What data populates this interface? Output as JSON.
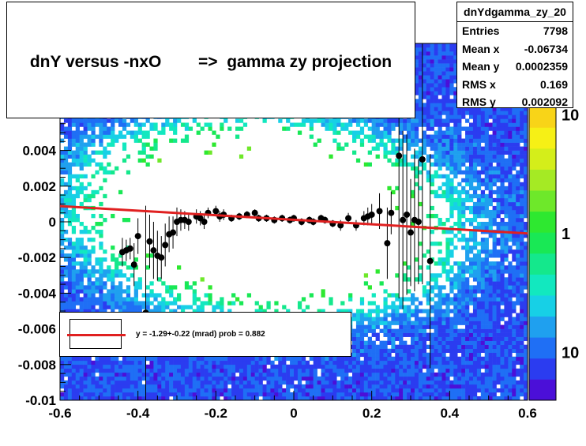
{
  "title": "dnY versus -nxO        =>  gamma zy projection",
  "stats": {
    "name": "dnYdgamma_zy_20",
    "rows": [
      {
        "label": "Entries",
        "value": "7798"
      },
      {
        "label": "Mean x",
        "value": "-0.06734"
      },
      {
        "label": "Mean y",
        "value": "0.0002359"
      },
      {
        "label": "RMS x",
        "value": "0.169"
      },
      {
        "label": "RMS y",
        "value": "0.002092"
      }
    ]
  },
  "legend": {
    "text": "y = -1.29+-0.22 (mrad) prob = 0.882"
  },
  "colors": {
    "fit": "#e02020",
    "points": "#000000",
    "frame": "#000000"
  },
  "chart_data": {
    "type": "heatmap",
    "xlim": [
      -0.6,
      0.6
    ],
    "ylim": [
      -0.01,
      0.01
    ],
    "x_ticks": [
      "-0.6",
      "-0.4",
      "-0.2",
      "0",
      "0.2",
      "0.4",
      "0.6"
    ],
    "y_ticks": [
      "-0.01",
      "-0.008",
      "-0.006",
      "-0.004",
      "-0.002",
      "0",
      "0.002",
      "0.004"
    ],
    "colorbar": {
      "log": true,
      "labels": [
        "10",
        "1",
        "10"
      ],
      "label_values": [
        10,
        1,
        0.1
      ]
    },
    "fit_line": {
      "x": [
        -0.6,
        0.6
      ],
      "y": [
        0.00088,
        -0.00065
      ]
    },
    "profile": {
      "x": [
        -0.44,
        -0.43,
        -0.42,
        -0.41,
        -0.4,
        -0.38,
        -0.37,
        -0.36,
        -0.35,
        -0.34,
        -0.33,
        -0.32,
        -0.31,
        -0.3,
        -0.29,
        -0.28,
        -0.27,
        -0.25,
        -0.24,
        -0.23,
        -0.22,
        -0.2,
        -0.19,
        -0.18,
        -0.16,
        -0.14,
        -0.12,
        -0.1,
        -0.09,
        -0.07,
        -0.05,
        -0.03,
        -0.01,
        0.0,
        0.02,
        0.04,
        0.05,
        0.07,
        0.08,
        0.1,
        0.12,
        0.14,
        0.16,
        0.18,
        0.19,
        0.2,
        0.22,
        0.24,
        0.25,
        0.27,
        0.28,
        0.29,
        0.3,
        0.31,
        0.32,
        0.33,
        0.35
      ],
      "y": [
        -0.0017,
        -0.0016,
        -0.0015,
        -0.0024,
        -0.0008,
        -0.0051,
        -0.0011,
        -0.0016,
        -0.0019,
        -0.002,
        -0.0013,
        -0.0007,
        -0.0006,
        0.0,
        0.0001,
        0.0001,
        0.0,
        0.0003,
        0.0002,
        0.0,
        0.0005,
        0.0006,
        0.0003,
        0.0004,
        0.0002,
        0.0003,
        0.0004,
        0.0005,
        0.0002,
        0.0002,
        0.0001,
        0.0002,
        0.0001,
        0.0002,
        0.0,
        0.0001,
        0.0,
        0.0002,
        0.0001,
        -0.0001,
        -0.0002,
        0.0002,
        -0.0002,
        0.0002,
        0.0003,
        0.0004,
        0.0006,
        -0.0012,
        0.0005,
        0.0037,
        0.0001,
        0.0004,
        -0.0006,
        0.0001,
        0.0,
        0.0035,
        -0.0022
      ],
      "err": [
        0.0008,
        0.0006,
        0.0006,
        0.0012,
        0.001,
        0.006,
        0.0015,
        0.0016,
        0.0014,
        0.0012,
        0.0012,
        0.001,
        0.0009,
        0.0008,
        0.0006,
        0.0005,
        0.0005,
        0.0004,
        0.0004,
        0.0004,
        0.0003,
        0.0003,
        0.0003,
        0.0003,
        0.0002,
        0.0002,
        0.0002,
        0.0002,
        0.0002,
        0.0002,
        0.0002,
        0.0002,
        0.0002,
        0.0002,
        0.0002,
        0.0002,
        0.0002,
        0.0002,
        0.0002,
        0.0002,
        0.0003,
        0.0003,
        0.0003,
        0.0004,
        0.0005,
        0.0006,
        0.001,
        0.002,
        0.0012,
        0.008,
        0.005,
        0.0045,
        0.003,
        0.004,
        0.0035,
        0.007,
        0.006
      ]
    }
  }
}
